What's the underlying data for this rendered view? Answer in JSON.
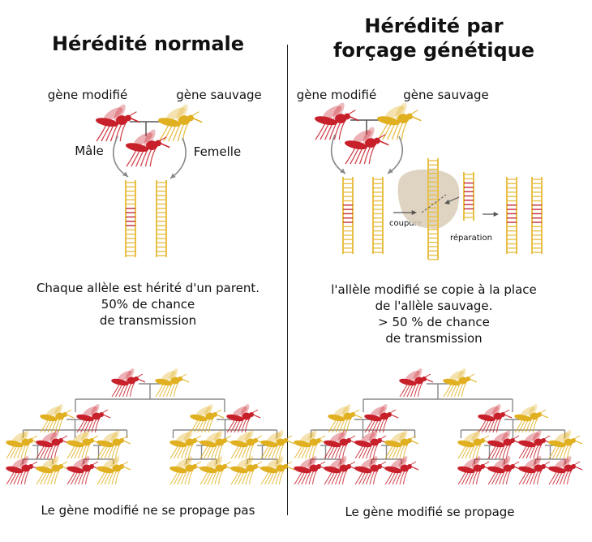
{
  "colors": {
    "modified": "#c8202a",
    "wild": "#e0b020",
    "dna_wild": "#e8c048",
    "dna_mod": "#c42a36",
    "enzyme": "#d9cdb6",
    "tree": "#888888"
  },
  "left": {
    "title": "Hérédité normale",
    "gene_modified": "gène modifié",
    "gene_wild": "gène sauvage",
    "male": "Mâle",
    "female": "Femelle",
    "caption": [
      "Chaque allèle est hérité d'un parent.",
      "50% de chance",
      "de transmission"
    ],
    "footer": "Le gène modifié ne se propage pas",
    "tree_rows": [
      [
        "modified",
        "wild"
      ],
      [
        "wild",
        "modified",
        "wild",
        "modified"
      ],
      [
        "wild",
        "modified",
        "wild",
        "wild",
        "wild",
        "wild",
        "wild",
        "wild"
      ],
      [
        "modified",
        "wild",
        "modified",
        "wild",
        "wild",
        "wild",
        "wild",
        "wild"
      ]
    ]
  },
  "right": {
    "title_line1": "Hérédité par",
    "title_line2": "forçage génétique",
    "gene_modified": "gène modifié",
    "gene_wild": "gène sauvage",
    "cut": "coupure",
    "repair": "réparation",
    "caption": [
      "l'allèle modifié se copie à la place",
      "de l'allèle sauvage.",
      "> 50 % de chance",
      "de transmission"
    ],
    "footer": "Le gène modifié se propage",
    "tree_rows": [
      [
        "modified",
        "wild"
      ],
      [
        "wild",
        "modified",
        "modified",
        "wild"
      ],
      [
        "wild",
        "modified",
        "modified",
        "wild",
        "wild",
        "modified",
        "modified",
        "wild"
      ],
      [
        "modified",
        "modified",
        "modified",
        "modified",
        "modified",
        "modified",
        "modified",
        "modified"
      ]
    ]
  }
}
